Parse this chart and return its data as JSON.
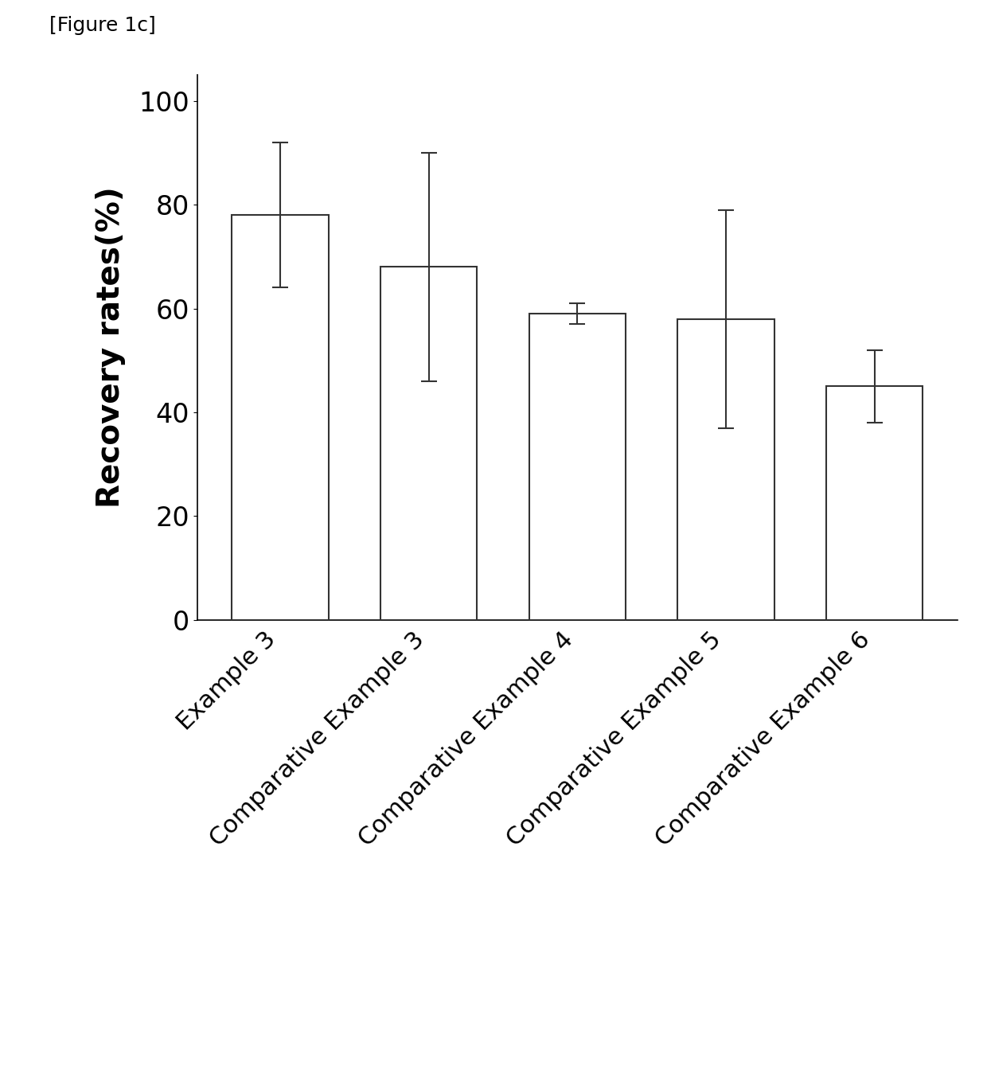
{
  "categories": [
    "Example 3",
    "Comparative Example 3",
    "Comparative Example 4",
    "Comparative Example 5",
    "Comparative Example 6"
  ],
  "values": [
    78,
    68,
    59,
    58,
    45
  ],
  "errors": [
    14,
    22,
    2,
    21,
    7
  ],
  "bar_color": "#ffffff",
  "bar_edgecolor": "#333333",
  "bar_linewidth": 1.5,
  "errorbar_color": "#333333",
  "errorbar_linewidth": 1.5,
  "errorbar_capsize": 7,
  "errorbar_capthick": 1.5,
  "ylabel": "Recovery rates(%)",
  "ylabel_fontsize": 28,
  "ylabel_fontweight": "bold",
  "yticks": [
    0,
    20,
    40,
    60,
    80,
    100
  ],
  "ylim": [
    0,
    105
  ],
  "tick_fontsize": 24,
  "xlabel_fontsize": 22,
  "figure_label": "[Figure 1c]",
  "figure_label_fontsize": 18,
  "background_color": "#ffffff",
  "bar_width": 0.65,
  "spine_linewidth": 1.2
}
